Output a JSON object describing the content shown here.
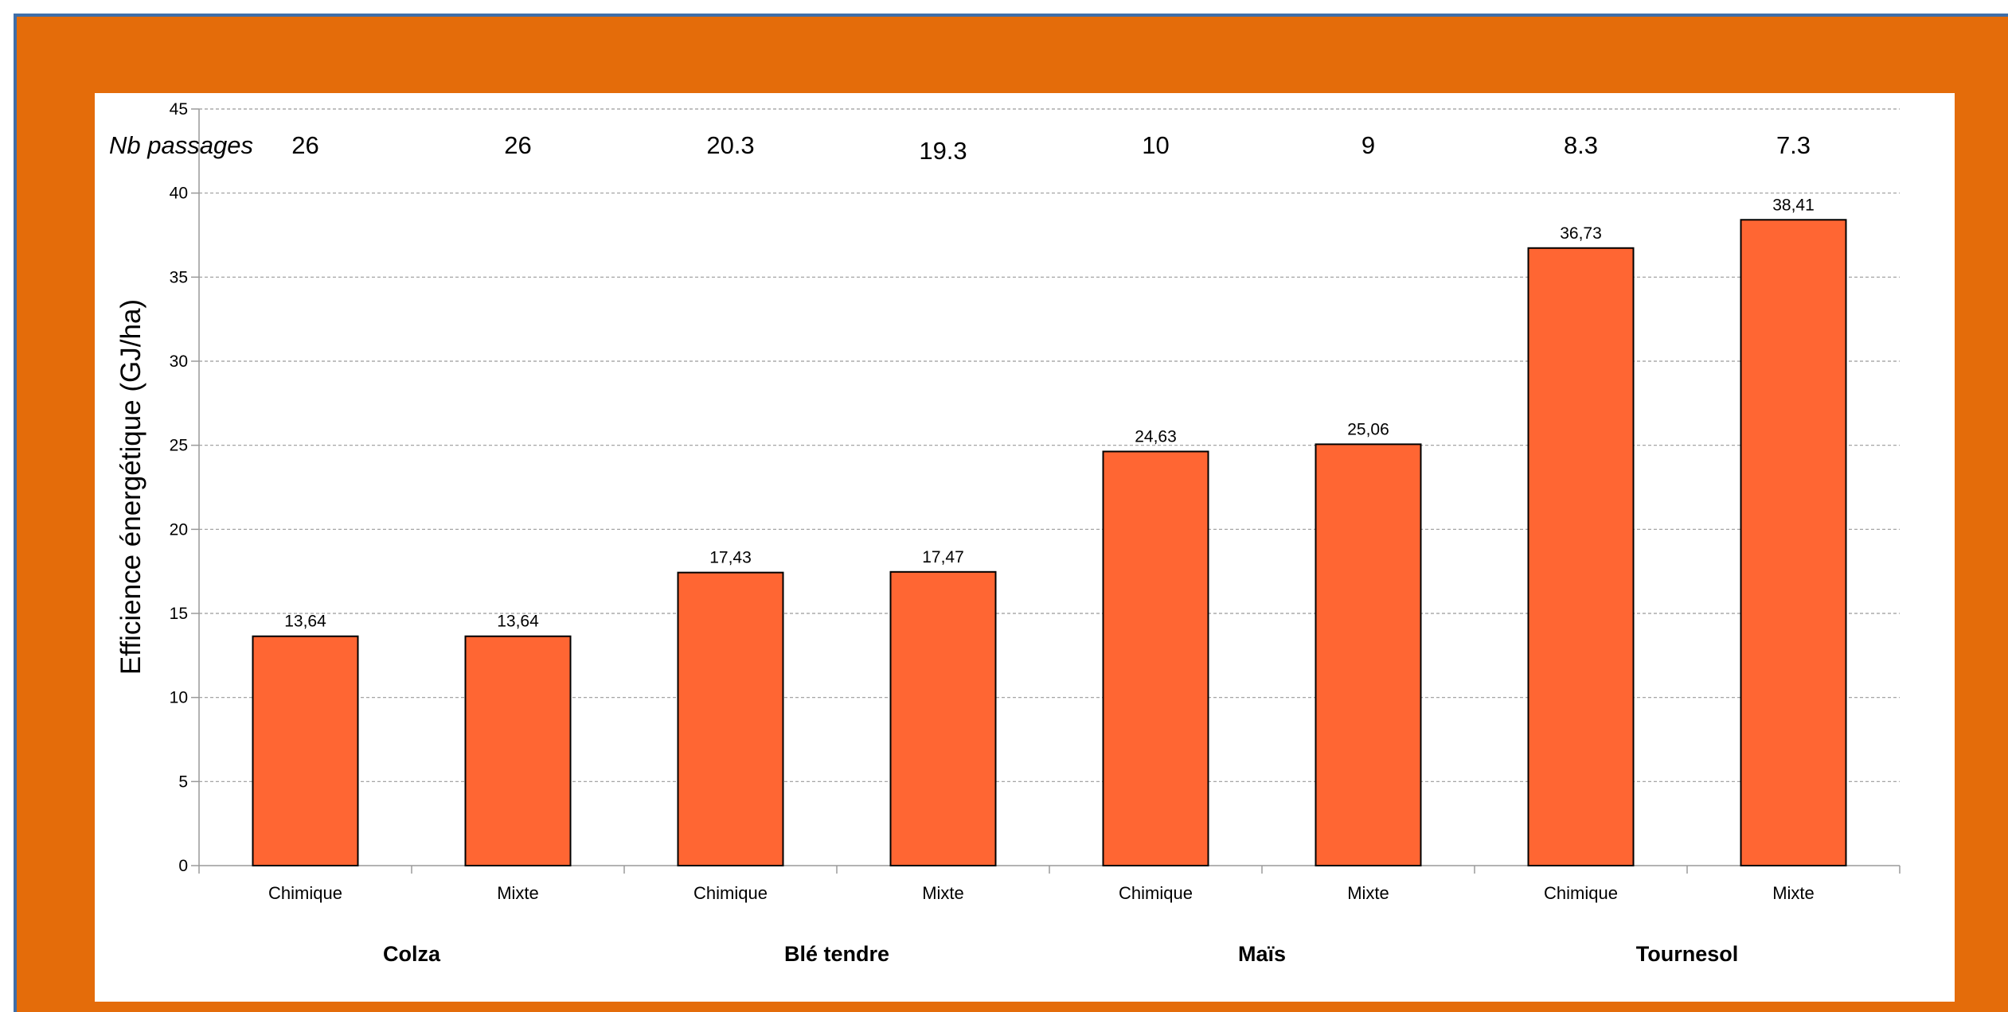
{
  "chart_data": {
    "type": "bar",
    "title": "",
    "ylabel": "Efficience énergétique (GJ/ha)",
    "xlabel": "",
    "ylim": [
      0,
      45
    ],
    "yticks": [
      0,
      5,
      10,
      15,
      20,
      25,
      30,
      35,
      40,
      45
    ],
    "grid": true,
    "categories": [
      "Chimique",
      "Mixte",
      "Chimique",
      "Mixte",
      "Chimique",
      "Mixte",
      "Chimique",
      "Mixte"
    ],
    "groups": [
      "Colza",
      "Blé tendre",
      "Maïs",
      "Tournesol"
    ],
    "values": [
      13.64,
      13.64,
      17.43,
      17.47,
      24.63,
      25.06,
      36.73,
      38.41
    ],
    "value_labels": [
      "13,64",
      "13,64",
      "17,43",
      "17,47",
      "24,63",
      "25,06",
      "36,73",
      "38,41"
    ],
    "passages_title": "Nb passages",
    "passages": [
      "26",
      "26",
      "20.3",
      "19.3",
      "10",
      "9",
      "8.3",
      "7.3"
    ],
    "bar_color": "#ff6633",
    "frame_color": "#e46c0a"
  }
}
